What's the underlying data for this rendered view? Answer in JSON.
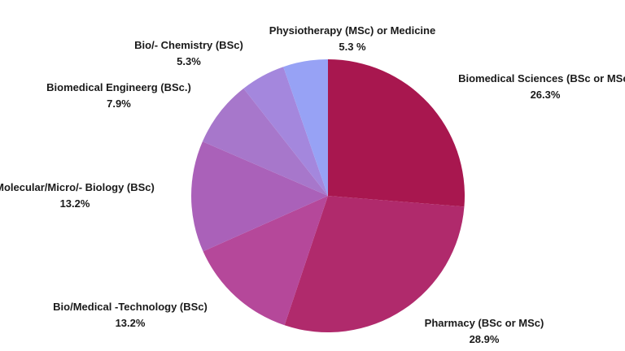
{
  "chart_data": {
    "type": "pie",
    "start_angle_deg": 0,
    "direction": "clockwise",
    "slices": [
      {
        "label": "Biomedical Sciences (BSc or MSc)",
        "value_label": "26.3%",
        "value": 26.3,
        "color": "#a8174f"
      },
      {
        "label": "Pharmacy (BSc or MSc)",
        "value_label": "28.9%",
        "value": 28.9,
        "color": "#b02a6c"
      },
      {
        "label": "Bio/Medical -Technology (BSc)",
        "value_label": "13.2%",
        "value": 13.2,
        "color": "#b5489a"
      },
      {
        "label": "Molecular/Micro/- Biology (BSc)",
        "value_label": "13.2%",
        "value": 13.2,
        "color": "#aa61b9"
      },
      {
        "label": "Biomedical Engineerg (BSc.)",
        "value_label": "7.9%",
        "value": 7.9,
        "color": "#a777cb"
      },
      {
        "label": "Bio/- Chemistry (BSc)",
        "value_label": "5.3%",
        "value": 5.3,
        "color": "#a487dd"
      },
      {
        "label": "Physiotherapy (MSc) or Medicine",
        "value_label": "5.3 %",
        "value": 5.3,
        "color": "#97a2f5"
      }
    ]
  }
}
